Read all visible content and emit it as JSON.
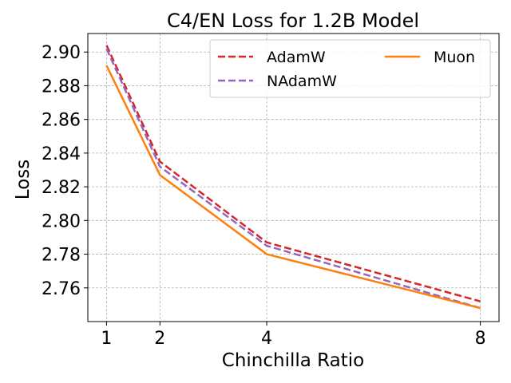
{
  "chart_data": {
    "type": "line",
    "title": "C4/EN Loss for 1.2B Model",
    "xlabel": "Chinchilla Ratio",
    "ylabel": "Loss",
    "x": [
      1,
      2,
      4,
      8
    ],
    "x_ticks": [
      "1",
      "2",
      "4",
      "8"
    ],
    "xlim": [
      0.65,
      8.35
    ],
    "ylim": [
      2.74,
      2.911
    ],
    "y_ticks": [
      "2.76",
      "2.78",
      "2.80",
      "2.82",
      "2.84",
      "2.86",
      "2.88",
      "2.90"
    ],
    "y_tick_values": [
      2.76,
      2.78,
      2.8,
      2.82,
      2.84,
      2.86,
      2.88,
      2.9
    ],
    "grid": true,
    "legend_placement": "top-right",
    "series": [
      {
        "name": "AdamW",
        "values": [
          2.904,
          2.835,
          2.787,
          2.752
        ],
        "color": "#d62728",
        "style": "dashed"
      },
      {
        "name": "NAdamW",
        "values": [
          2.902,
          2.832,
          2.785,
          2.748
        ],
        "color": "#9467bd",
        "style": "dashed"
      },
      {
        "name": "Muon",
        "values": [
          2.892,
          2.827,
          2.78,
          2.748
        ],
        "color": "#ff7f0e",
        "style": "solid"
      }
    ]
  }
}
